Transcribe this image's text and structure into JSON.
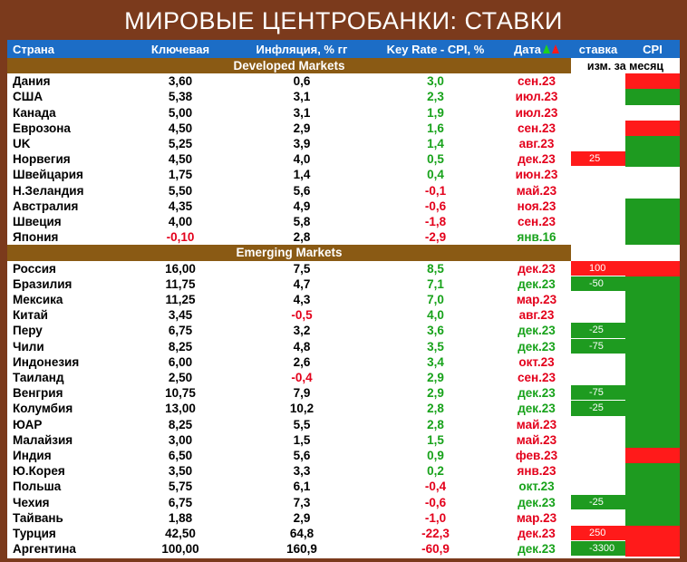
{
  "header": {
    "title": "МИРОВЫЕ ЦЕНТРОБАНКИ: СТАВКИ"
  },
  "table": {
    "columns": [
      "Страна",
      "Ключевая",
      "Инфляция, % гг",
      "Key Rate - CPI, %",
      "Дата",
      "ставка",
      "CPI"
    ],
    "change_label": "изм. за месяц",
    "sections": [
      {
        "name": "Developed Markets",
        "rows": [
          {
            "country": "Дания",
            "key_rate": "3,60",
            "inflation": "0,6",
            "diff": "3,0",
            "date": "сен.23",
            "date_color": "red",
            "cpi_color": "red"
          },
          {
            "country": "США",
            "key_rate": "5,38",
            "inflation": "3,1",
            "diff": "2,3",
            "date": "июл.23",
            "date_color": "red",
            "cpi_color": "green"
          },
          {
            "country": "Канада",
            "key_rate": "5,00",
            "inflation": "3,1",
            "diff": "1,9",
            "date": "июл.23",
            "date_color": "red"
          },
          {
            "country": "Еврозона",
            "key_rate": "4,50",
            "inflation": "2,9",
            "diff": "1,6",
            "date": "сен.23",
            "date_color": "red",
            "cpi_color": "red"
          },
          {
            "country": "UK",
            "key_rate": "5,25",
            "inflation": "3,9",
            "diff": "1,4",
            "date": "авг.23",
            "date_color": "red",
            "cpi_color": "green"
          },
          {
            "country": "Норвегия",
            "key_rate": "4,50",
            "inflation": "4,0",
            "diff": "0,5",
            "date": "дек.23",
            "date_color": "red",
            "rate_change": "25",
            "rate_color": "red",
            "cpi_color": "green"
          },
          {
            "country": "Швейцария",
            "key_rate": "1,75",
            "inflation": "1,4",
            "diff": "0,4",
            "date": "июн.23",
            "date_color": "red"
          },
          {
            "country": "Н.Зеландия",
            "key_rate": "5,50",
            "inflation": "5,6",
            "diff": "-0,1",
            "date": "май.23",
            "date_color": "red"
          },
          {
            "country": "Австралия",
            "key_rate": "4,35",
            "inflation": "4,9",
            "diff": "-0,6",
            "date": "ноя.23",
            "date_color": "red",
            "cpi_color": "green"
          },
          {
            "country": "Швеция",
            "key_rate": "4,00",
            "inflation": "5,8",
            "diff": "-1,8",
            "date": "сен.23",
            "date_color": "red",
            "cpi_color": "green"
          },
          {
            "country": "Япония",
            "key_rate": "-0,10",
            "inflation": "2,8",
            "diff": "-2,9",
            "date": "янв.16",
            "date_color": "green",
            "cpi_color": "green"
          }
        ]
      },
      {
        "name": "Emerging Markets",
        "rows": [
          {
            "country": "Россия",
            "key_rate": "16,00",
            "inflation": "7,5",
            "diff": "8,5",
            "date": "дек.23",
            "date_color": "red",
            "rate_change": "100",
            "rate_color": "red",
            "cpi_color": "red"
          },
          {
            "country": "Бразилия",
            "key_rate": "11,75",
            "inflation": "4,7",
            "diff": "7,1",
            "date": "дек.23",
            "date_color": "green",
            "rate_change": "-50",
            "rate_color": "green",
            "cpi_color": "green"
          },
          {
            "country": "Мексика",
            "key_rate": "11,25",
            "inflation": "4,3",
            "diff": "7,0",
            "date": "мар.23",
            "date_color": "red",
            "cpi_color": "green"
          },
          {
            "country": "Китай",
            "key_rate": "3,45",
            "inflation": "-0,5",
            "diff": "4,0",
            "date": "авг.23",
            "date_color": "red",
            "cpi_color": "green"
          },
          {
            "country": "Перу",
            "key_rate": "6,75",
            "inflation": "3,2",
            "diff": "3,6",
            "date": "дек.23",
            "date_color": "green",
            "rate_change": "-25",
            "rate_color": "green",
            "cpi_color": "green"
          },
          {
            "country": "Чили",
            "key_rate": "8,25",
            "inflation": "4,8",
            "diff": "3,5",
            "date": "дек.23",
            "date_color": "green",
            "rate_change": "-75",
            "rate_color": "green",
            "cpi_color": "green"
          },
          {
            "country": "Индонезия",
            "key_rate": "6,00",
            "inflation": "2,6",
            "diff": "3,4",
            "date": "окт.23",
            "date_color": "red",
            "cpi_color": "green"
          },
          {
            "country": "Таиланд",
            "key_rate": "2,50",
            "inflation": "-0,4",
            "diff": "2,9",
            "date": "сен.23",
            "date_color": "red",
            "cpi_color": "green"
          },
          {
            "country": "Венгрия",
            "key_rate": "10,75",
            "inflation": "7,9",
            "diff": "2,9",
            "date": "дек.23",
            "date_color": "green",
            "rate_change": "-75",
            "rate_color": "green",
            "cpi_color": "green"
          },
          {
            "country": "Колумбия",
            "key_rate": "13,00",
            "inflation": "10,2",
            "diff": "2,8",
            "date": "дек.23",
            "date_color": "green",
            "rate_change": "-25",
            "rate_color": "green",
            "cpi_color": "green"
          },
          {
            "country": "ЮАР",
            "key_rate": "8,25",
            "inflation": "5,5",
            "diff": "2,8",
            "date": "май.23",
            "date_color": "red",
            "cpi_color": "green"
          },
          {
            "country": "Малайзия",
            "key_rate": "3,00",
            "inflation": "1,5",
            "diff": "1,5",
            "date": "май.23",
            "date_color": "red",
            "cpi_color": "green"
          },
          {
            "country": "Индия",
            "key_rate": "6,50",
            "inflation": "5,6",
            "diff": "0,9",
            "date": "фев.23",
            "date_color": "red",
            "cpi_color": "red"
          },
          {
            "country": "Ю.Корея",
            "key_rate": "3,50",
            "inflation": "3,3",
            "diff": "0,2",
            "date": "янв.23",
            "date_color": "red",
            "cpi_color": "green"
          },
          {
            "country": "Польша",
            "key_rate": "5,75",
            "inflation": "6,1",
            "diff": "-0,4",
            "date": "окт.23",
            "date_color": "green",
            "cpi_color": "green"
          },
          {
            "country": "Чехия",
            "key_rate": "6,75",
            "inflation": "7,3",
            "diff": "-0,6",
            "date": "дек.23",
            "date_color": "green",
            "rate_change": "-25",
            "rate_color": "green",
            "cpi_color": "green"
          },
          {
            "country": "Тайвань",
            "key_rate": "1,88",
            "inflation": "2,9",
            "diff": "-1,0",
            "date": "мар.23",
            "date_color": "red",
            "cpi_color": "green"
          },
          {
            "country": "Турция",
            "key_rate": "42,50",
            "inflation": "64,8",
            "diff": "-22,3",
            "date": "дек.23",
            "date_color": "red",
            "rate_change": "250",
            "rate_color": "red",
            "cpi_color": "red"
          },
          {
            "country": "Аргентина",
            "key_rate": "100,00",
            "inflation": "160,9",
            "diff": "-60,9",
            "date": "дек.23",
            "date_color": "green",
            "rate_change": "-3300",
            "rate_color": "green",
            "cpi_color": "red"
          }
        ]
      }
    ]
  }
}
